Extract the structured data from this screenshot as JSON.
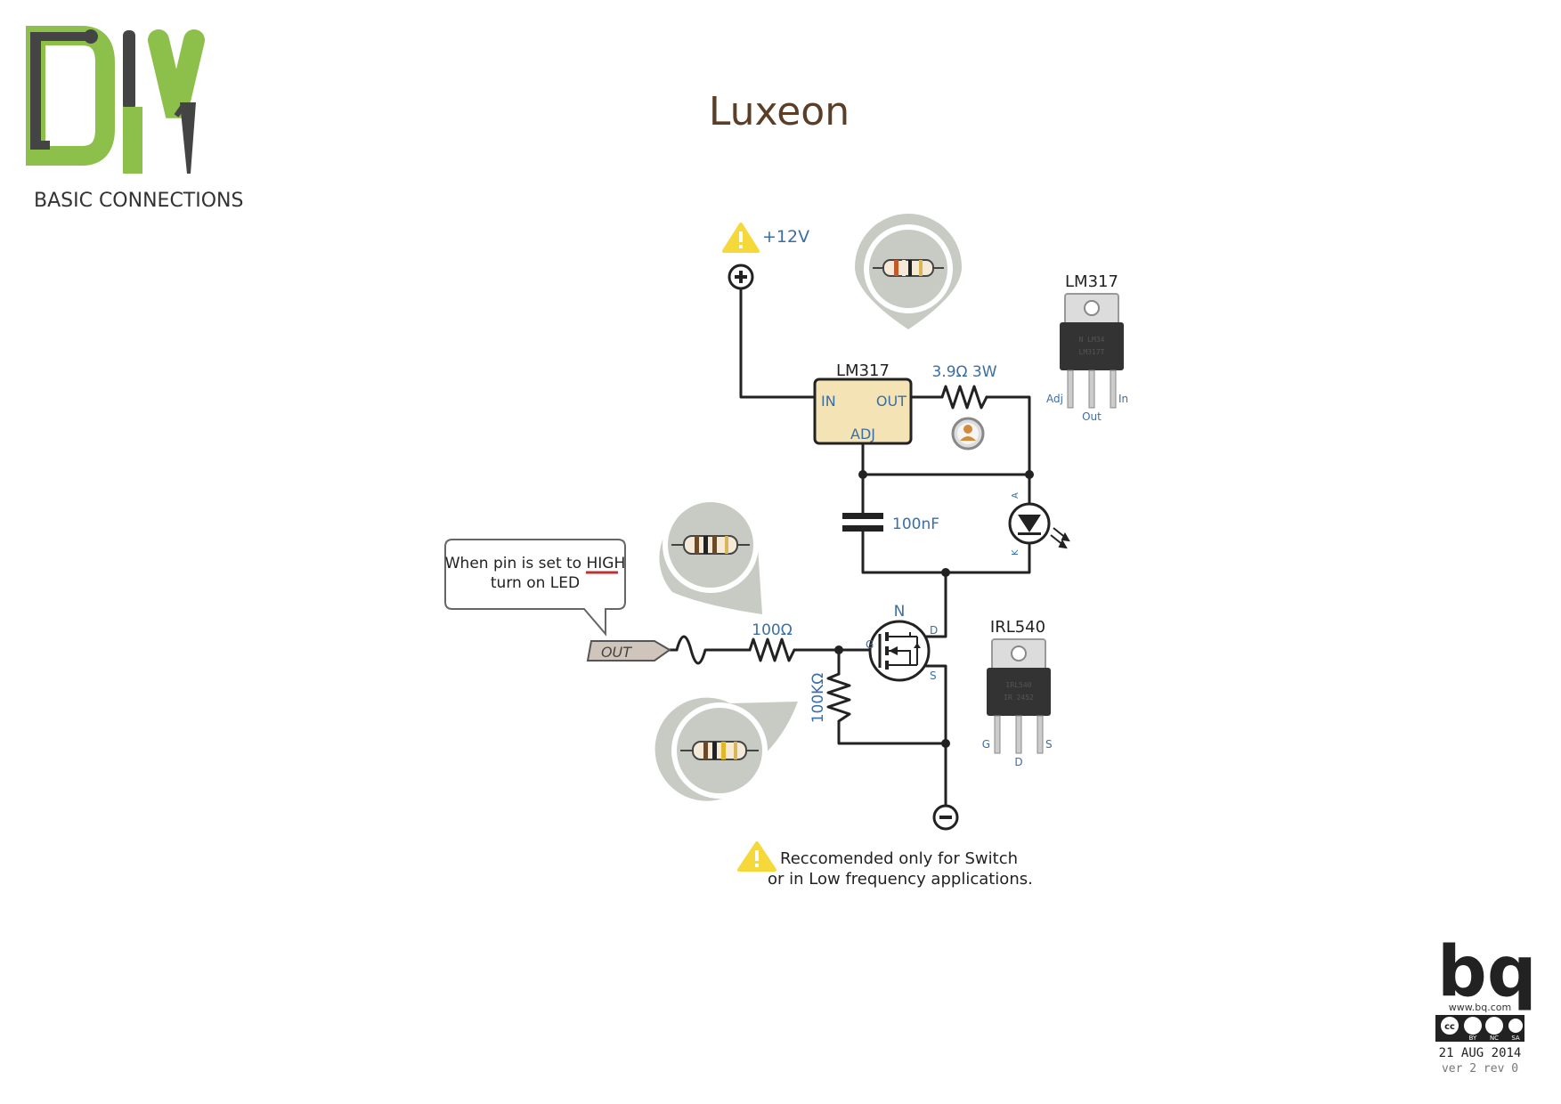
{
  "title": "Luxeon",
  "logo": {
    "text": "DIY",
    "subtitle": "BASIC CONNECTIONS"
  },
  "colors": {
    "green": "#8cc04b",
    "darkgray": "#444444",
    "title": "#5a3e28",
    "blue": "#3a6ea5",
    "reg_fill": "#f3e3b5",
    "bubble": "#c7cbc3"
  },
  "supply": {
    "label": "+12V",
    "warning_icon": "warning-icon"
  },
  "regulator": {
    "label": "LM317",
    "in": "IN",
    "out": "OUT",
    "adj": "ADJ"
  },
  "resistor_series": {
    "label": "3.9Ω 3W"
  },
  "capacitor": {
    "label": "100nF"
  },
  "led": {
    "anode": "A",
    "cathode": "K"
  },
  "gate_resistor": {
    "label": "100Ω"
  },
  "pulldown_resistor": {
    "label": "100KΩ"
  },
  "mosfet": {
    "type": "N",
    "g": "G",
    "d": "D",
    "s": "S"
  },
  "out_pin": {
    "label": "OUT"
  },
  "callout": {
    "line1_prefix": "When pin is set to ",
    "line1_highlight": "HIGH",
    "line2": "turn on LED"
  },
  "lm317_package": {
    "title": "LM317",
    "chip_text": "LM317T",
    "pins": [
      "Adj",
      "Out",
      "In"
    ]
  },
  "irl540_package": {
    "title": "IRL540",
    "chip_text": "IRL540",
    "pins": [
      "G",
      "D",
      "S"
    ]
  },
  "warning_note": {
    "line1": "Reccomended only for Switch",
    "line2": "or in Low frequency applications."
  },
  "footer": {
    "brand": "bq",
    "url": "www.bq.com",
    "cc": [
      "BY",
      "NC",
      "SA"
    ],
    "date": "21 AUG 2014",
    "version": "ver 2 rev 0"
  }
}
